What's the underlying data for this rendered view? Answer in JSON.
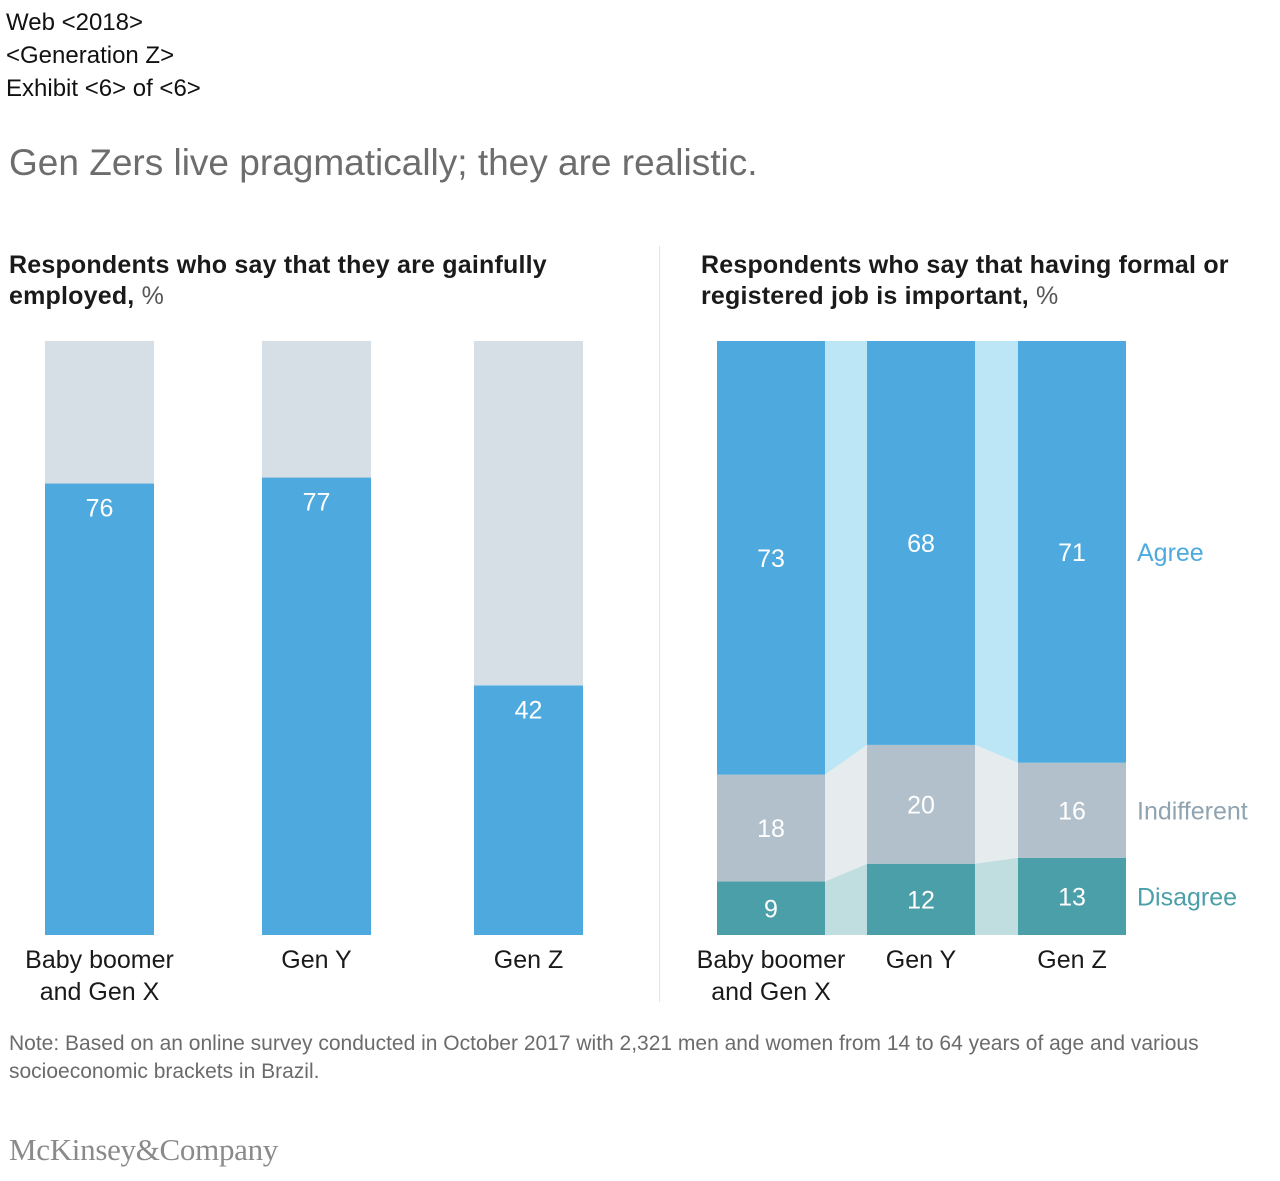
{
  "meta": {
    "line1": "Web <2018>",
    "line2": "<Generation Z>",
    "line3": "Exhibit <6> of <6>"
  },
  "title": "Gen Zers live pragmatically; they are realistic.",
  "note": "Note: Based on an online survey conducted in October 2017 with 2,321 men and women from 14 to 64 years of age and various socioeconomic brackets in Brazil.",
  "logo": "McKinsey&Company",
  "colors": {
    "agree": "#4eaade",
    "agree_light": "#bce6f6",
    "indifferent": "#b2c0cb",
    "indifferent_light": "#e6ebee",
    "disagree": "#4a9fa8",
    "disagree_light": "#c0dedf",
    "background_bar": "#d7dfe6",
    "agree_label": "#4eaade",
    "indifferent_label": "#8fa3b0",
    "disagree_label": "#4a9fa8"
  },
  "chart_data": [
    {
      "type": "bar",
      "title_main": "Respondents who say that they are gainfully employed,",
      "title_unit": "%",
      "categories": [
        "Baby boomer and Gen X",
        "Gen Y",
        "Gen Z"
      ],
      "category_lines": [
        [
          "Baby boomer",
          "and Gen X"
        ],
        [
          "Gen Y"
        ],
        [
          "Gen Z"
        ]
      ],
      "values": [
        76,
        77,
        42
      ],
      "ylim": [
        0,
        100
      ]
    },
    {
      "type": "bar",
      "stacked": true,
      "title_main": "Respondents who say that having formal or registered job is important,",
      "title_unit": "%",
      "categories": [
        "Baby boomer and Gen X",
        "Gen Y",
        "Gen Z"
      ],
      "category_lines": [
        [
          "Baby boomer",
          "and Gen X"
        ],
        [
          "Gen Y"
        ],
        [
          "Gen Z"
        ]
      ],
      "series": [
        {
          "name": "Disagree",
          "values": [
            9,
            12,
            13
          ]
        },
        {
          "name": "Indifferent",
          "values": [
            18,
            20,
            16
          ]
        },
        {
          "name": "Agree",
          "values": [
            73,
            68,
            71
          ]
        }
      ],
      "ylim": [
        0,
        100
      ]
    }
  ]
}
